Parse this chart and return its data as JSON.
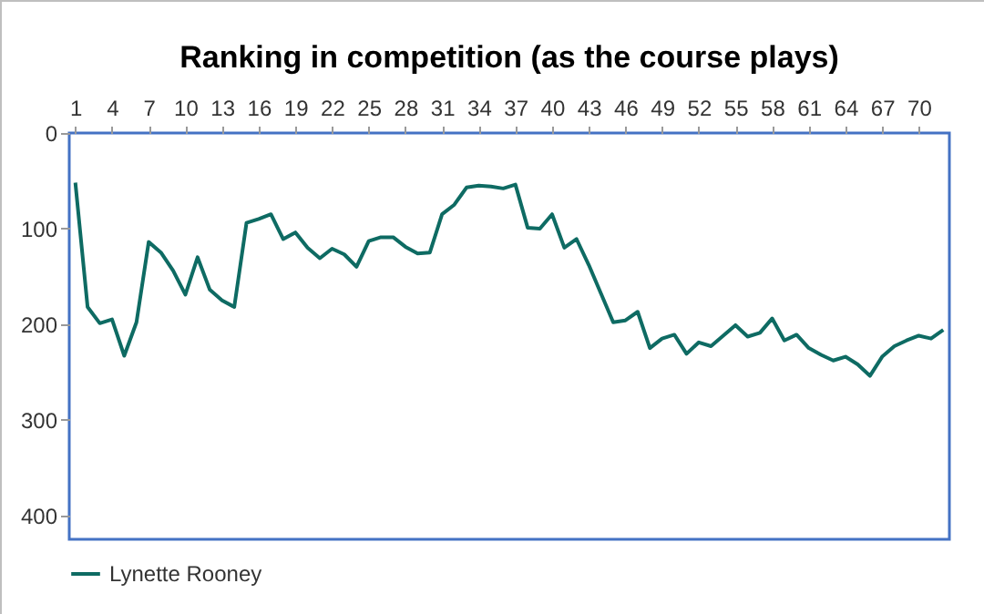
{
  "chart_data": {
    "type": "line",
    "title": "Ranking in competition (as the course plays)",
    "x": [
      1,
      2,
      3,
      4,
      5,
      6,
      7,
      8,
      9,
      10,
      11,
      12,
      13,
      14,
      15,
      16,
      17,
      18,
      19,
      20,
      21,
      22,
      23,
      24,
      25,
      26,
      27,
      28,
      29,
      30,
      31,
      32,
      33,
      34,
      35,
      36,
      37,
      38,
      39,
      40,
      41,
      42,
      43,
      44,
      45,
      46,
      47,
      48,
      49,
      50,
      51,
      52,
      53,
      54,
      55,
      56,
      57,
      58,
      59,
      60,
      61,
      62,
      63,
      64,
      65,
      66,
      67,
      68,
      69,
      70,
      71,
      72
    ],
    "series": [
      {
        "name": "Lynette Rooney",
        "color": "#0e6b63",
        "values": [
          52,
          182,
          199,
          195,
          233,
          198,
          114,
          125,
          144,
          169,
          130,
          164,
          175,
          182,
          94,
          90,
          85,
          111,
          104,
          120,
          131,
          121,
          127,
          140,
          113,
          109,
          109,
          119,
          126,
          125,
          85,
          75,
          57,
          55,
          56,
          58,
          54,
          99,
          100,
          85,
          120,
          111,
          138,
          168,
          198,
          196,
          187,
          225,
          215,
          211,
          231,
          219,
          223,
          212,
          201,
          213,
          209,
          194,
          217,
          211,
          225,
          232,
          238,
          234,
          242,
          254,
          234,
          223,
          217,
          212,
          215,
          206
        ]
      }
    ],
    "xlim": [
      0.5,
      72.5
    ],
    "xticks": [
      1,
      4,
      7,
      10,
      13,
      16,
      19,
      22,
      25,
      28,
      31,
      34,
      37,
      40,
      43,
      46,
      49,
      52,
      55,
      58,
      61,
      64,
      67,
      70
    ],
    "ylim": [
      425,
      0
    ],
    "yticks": [
      0,
      100,
      200,
      300,
      400
    ],
    "grid": false,
    "legend": "bottom",
    "marker": "none",
    "line_style": "solid"
  }
}
